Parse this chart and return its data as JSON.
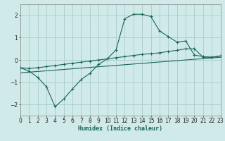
{
  "background_color": "#d0eaea",
  "grid_color": "#a8cccc",
  "line_color": "#1a6655",
  "xlabel": "Humidex (Indice chaleur)",
  "xlim": [
    0,
    23
  ],
  "ylim": [
    -2.5,
    2.5
  ],
  "yticks": [
    -2,
    -1,
    0,
    1,
    2
  ],
  "xticks": [
    0,
    1,
    2,
    3,
    4,
    5,
    6,
    7,
    8,
    9,
    10,
    11,
    12,
    13,
    14,
    15,
    16,
    17,
    18,
    19,
    20,
    21,
    22,
    23
  ],
  "curve1_x": [
    0,
    1,
    2,
    3,
    4,
    5,
    6,
    7,
    8,
    9,
    10,
    11,
    12,
    13,
    14,
    15,
    16,
    17,
    18,
    19,
    20,
    21,
    22,
    23
  ],
  "curve1_y": [
    -0.35,
    -0.5,
    -0.78,
    -1.2,
    -2.1,
    -1.75,
    -1.3,
    -0.88,
    -0.6,
    -0.2,
    0.05,
    0.45,
    1.85,
    2.05,
    2.05,
    1.95,
    1.3,
    1.05,
    0.8,
    0.85,
    0.22,
    0.15,
    0.12,
    0.18
  ],
  "curve2_x": [
    0,
    1,
    2,
    3,
    4,
    5,
    6,
    7,
    8,
    9,
    10,
    11,
    12,
    13,
    14,
    15,
    16,
    17,
    18,
    19,
    20,
    21,
    22,
    23
  ],
  "curve2_y": [
    -0.35,
    -0.38,
    -0.35,
    -0.3,
    -0.25,
    -0.2,
    -0.15,
    -0.1,
    -0.05,
    0.0,
    0.05,
    0.1,
    0.15,
    0.2,
    0.25,
    0.28,
    0.32,
    0.38,
    0.43,
    0.5,
    0.5,
    0.12,
    0.12,
    0.18
  ],
  "line_x": [
    0,
    23
  ],
  "line_y": [
    -0.58,
    0.12
  ]
}
